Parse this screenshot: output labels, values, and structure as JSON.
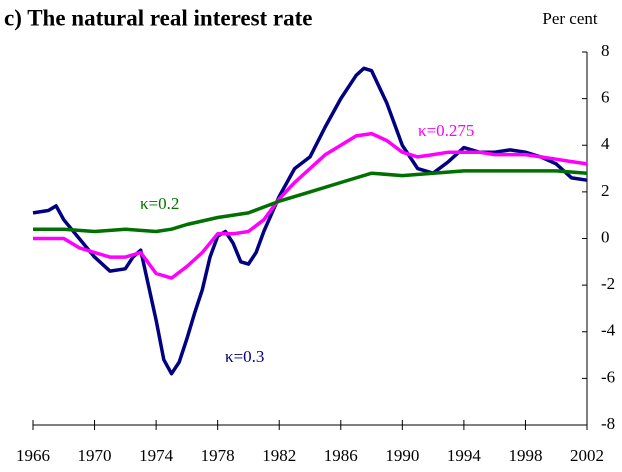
{
  "chart_data": {
    "type": "line",
    "title": "c) The natural real interest rate",
    "y_label": "Per cent",
    "xlim": [
      1966,
      2002
    ],
    "xticks": [
      1966,
      1970,
      1974,
      1978,
      1982,
      1986,
      1990,
      1994,
      1998,
      2002
    ],
    "ylim": [
      -8,
      8
    ],
    "yticks": [
      -8,
      -6,
      -4,
      -2,
      0,
      2,
      4,
      6,
      8
    ],
    "grid": false,
    "series": [
      {
        "name": "κ=0.3",
        "color": "#000080",
        "x": [
          1966,
          1967,
          1967.5,
          1968,
          1969,
          1970,
          1971,
          1972,
          1972.5,
          1973,
          1973.5,
          1974,
          1974.5,
          1975,
          1975.5,
          1976,
          1976.5,
          1977,
          1977.5,
          1978,
          1978.5,
          1979,
          1979.5,
          1980,
          1980.5,
          1981,
          1982,
          1983,
          1984,
          1985,
          1986,
          1987,
          1987.5,
          1988,
          1989,
          1990,
          1991,
          1992,
          1993,
          1994,
          1995,
          1996,
          1997,
          1998,
          1999,
          2000,
          2001,
          2002
        ],
        "values": [
          1.1,
          1.2,
          1.4,
          0.8,
          0.0,
          -0.8,
          -1.4,
          -1.3,
          -0.8,
          -0.5,
          -2.0,
          -3.5,
          -5.2,
          -5.8,
          -5.3,
          -4.3,
          -3.2,
          -2.2,
          -0.8,
          0.1,
          0.3,
          -0.2,
          -1.0,
          -1.1,
          -0.6,
          0.3,
          1.8,
          3.0,
          3.5,
          4.8,
          6.0,
          7.0,
          7.3,
          7.2,
          5.8,
          4.0,
          3.0,
          2.8,
          3.3,
          3.9,
          3.7,
          3.7,
          3.8,
          3.7,
          3.5,
          3.2,
          2.6,
          2.5
        ]
      },
      {
        "name": "κ=0.275",
        "color": "#ff00ff",
        "x": [
          1966,
          1968,
          1969,
          1970,
          1971,
          1972,
          1973,
          1974,
          1975,
          1976,
          1977,
          1978,
          1979,
          1980,
          1981,
          1982,
          1983,
          1984,
          1985,
          1986,
          1987,
          1988,
          1989,
          1990,
          1991,
          1992,
          1993,
          1994,
          1995,
          1996,
          1997,
          1998,
          1999,
          2000,
          2001,
          2002
        ],
        "values": [
          0.0,
          0.0,
          -0.4,
          -0.6,
          -0.8,
          -0.8,
          -0.6,
          -1.5,
          -1.7,
          -1.2,
          -0.6,
          0.2,
          0.2,
          0.3,
          0.8,
          1.7,
          2.4,
          3.0,
          3.6,
          4.0,
          4.4,
          4.5,
          4.2,
          3.7,
          3.5,
          3.6,
          3.7,
          3.7,
          3.7,
          3.6,
          3.6,
          3.6,
          3.5,
          3.4,
          3.3,
          3.2
        ]
      },
      {
        "name": "κ=0.2",
        "color": "#007000",
        "x": [
          1966,
          1968,
          1970,
          1972,
          1974,
          1975,
          1976,
          1978,
          1980,
          1982,
          1984,
          1986,
          1988,
          1990,
          1992,
          1994,
          1996,
          1998,
          2000,
          2002
        ],
        "values": [
          0.4,
          0.4,
          0.3,
          0.4,
          0.3,
          0.4,
          0.6,
          0.9,
          1.1,
          1.6,
          2.0,
          2.4,
          2.8,
          2.7,
          2.8,
          2.9,
          2.9,
          2.9,
          2.9,
          2.8
        ]
      }
    ]
  }
}
